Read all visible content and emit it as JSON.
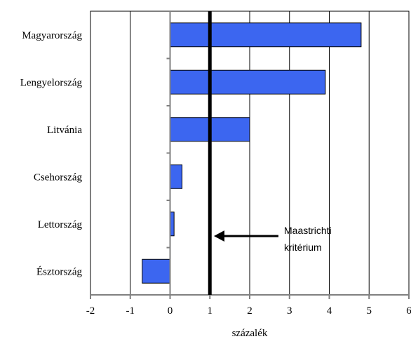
{
  "chart_data": {
    "type": "bar",
    "orientation": "horizontal",
    "categories": [
      "Magyarország",
      "Lengyelország",
      "Litvánia",
      "Csehország",
      "Lettország",
      "Észtország"
    ],
    "values": [
      4.8,
      3.9,
      2.0,
      0.3,
      0.1,
      -0.7
    ],
    "bar_color": "#3c66f0",
    "xlabel": "százalék",
    "xlim": [
      -2,
      6
    ],
    "xticks": [
      "-2",
      "-1",
      "0",
      "1",
      "2",
      "3",
      "4",
      "5",
      "6"
    ],
    "grid": "vertical",
    "reference_line": {
      "value": 1,
      "label_line1": "Maastrichti",
      "label_line2": "kritérium"
    }
  }
}
